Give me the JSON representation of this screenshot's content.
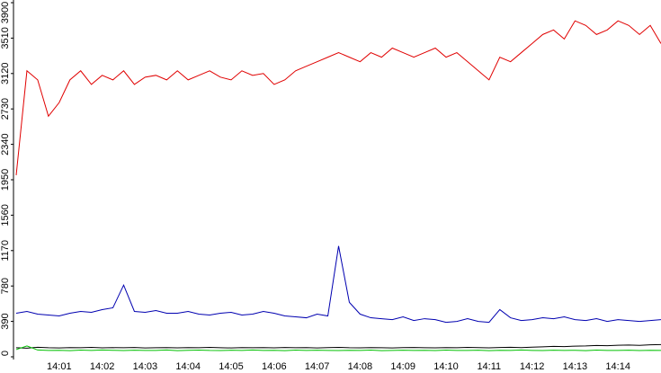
{
  "chart_data": {
    "type": "line",
    "categories": [
      null,
      null,
      null,
      null,
      "14:01",
      null,
      null,
      null,
      "14:02",
      null,
      null,
      null,
      "14:03",
      null,
      null,
      null,
      "14:04",
      null,
      null,
      null,
      "14:05",
      null,
      null,
      null,
      "14:06",
      null,
      null,
      null,
      "14:07",
      null,
      null,
      null,
      "14:08",
      null,
      null,
      null,
      "14:09",
      null,
      null,
      null,
      "14:10",
      null,
      null,
      null,
      "14:11",
      null,
      null,
      null,
      "14:12",
      null,
      null,
      null,
      "14:13",
      null,
      null,
      null,
      "14:14",
      null,
      null,
      null,
      null
    ],
    "series": [
      {
        "color": "#e00000",
        "values": [
          2000,
          3150,
          3050,
          2650,
          2800,
          3050,
          3150,
          3000,
          3100,
          3050,
          3150,
          3000,
          3080,
          3100,
          3050,
          3150,
          3050,
          3100,
          3150,
          3080,
          3050,
          3150,
          3100,
          3120,
          3000,
          3050,
          3150,
          3200,
          3250,
          3300,
          3350,
          3300,
          3250,
          3350,
          3300,
          3400,
          3350,
          3300,
          3350,
          3400,
          3300,
          3350,
          3250,
          3150,
          3050,
          3300,
          3250,
          3350,
          3450,
          3550,
          3600,
          3500,
          3700,
          3650,
          3550,
          3600,
          3700,
          3650,
          3550,
          3650,
          3450
        ]
      },
      {
        "color": "#0000b0",
        "values": [
          480,
          500,
          470,
          460,
          450,
          480,
          500,
          490,
          520,
          540,
          790,
          500,
          490,
          510,
          480,
          480,
          500,
          470,
          460,
          480,
          490,
          460,
          470,
          500,
          480,
          450,
          440,
          430,
          470,
          450,
          1220,
          600,
          470,
          430,
          420,
          410,
          440,
          400,
          420,
          410,
          380,
          390,
          420,
          390,
          380,
          520,
          430,
          400,
          410,
          430,
          420,
          440,
          410,
          400,
          420,
          390,
          410,
          400,
          390,
          400,
          410
        ]
      },
      {
        "color": "#000000",
        "values": [
          100,
          95,
          105,
          100,
          98,
          102,
          100,
          104,
          99,
          101,
          100,
          103,
          98,
          100,
          102,
          99,
          101,
          100,
          104,
          100,
          98,
          102,
          100,
          101,
          99,
          103,
          100,
          102,
          98,
          101,
          104,
          100,
          99,
          102,
          100,
          98,
          101,
          103,
          100,
          99,
          102,
          100,
          104,
          101,
          99,
          103,
          105,
          102,
          106,
          110,
          115,
          112,
          118,
          120,
          125,
          122,
          128,
          130,
          126,
          132,
          135
        ]
      },
      {
        "color": "#00c000",
        "values": [
          80,
          120,
          75,
          70,
          72,
          68,
          74,
          70,
          76,
          72,
          69,
          73,
          71,
          70,
          75,
          68,
          72,
          74,
          70,
          69,
          73,
          71,
          75,
          70,
          72,
          68,
          74,
          70,
          73,
          71,
          69,
          72,
          70,
          74,
          68,
          71,
          73,
          70,
          72,
          69,
          74,
          70,
          71,
          73,
          68,
          72,
          70,
          75,
          71,
          69,
          73,
          70,
          72,
          68,
          74,
          71,
          70,
          73,
          69,
          72,
          70
        ]
      }
    ],
    "ylim": [
      0,
      3900
    ],
    "yticks": [
      0,
      390,
      780,
      1170,
      1560,
      1950,
      2340,
      2730,
      3120,
      3510,
      3900
    ],
    "grid": false
  }
}
